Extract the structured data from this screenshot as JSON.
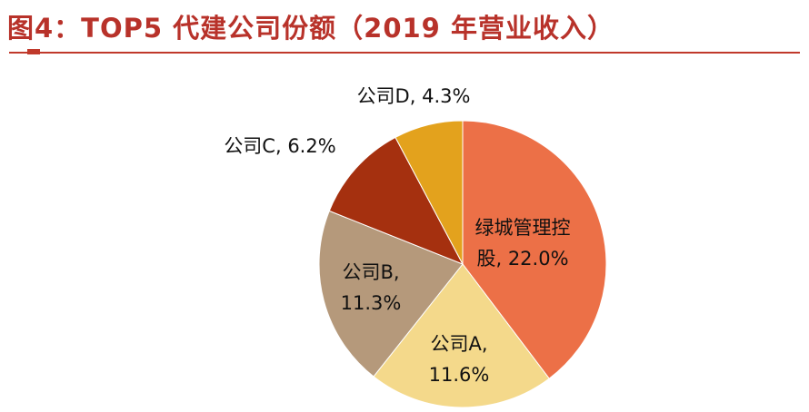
{
  "header": {
    "title": "图4：TOP5 代建公司份额（2019 年营业收入）"
  },
  "colors": {
    "title": "#b8322a",
    "rule": "#c0392b"
  },
  "chart_data": {
    "type": "pie",
    "title": "",
    "unit": "%",
    "slices": [
      {
        "label_lines": [
          "绿城管理控",
          "股, 22.0%"
        ],
        "name": "绿城管理控股",
        "value": 22.0,
        "color": "#ec7047"
      },
      {
        "label_lines": [
          "公司A,",
          "11.6%"
        ],
        "name": "公司A",
        "value": 11.6,
        "color": "#f4d98b"
      },
      {
        "label_lines": [
          "公司B,",
          "11.3%"
        ],
        "name": "公司B",
        "value": 11.3,
        "color": "#b5997b"
      },
      {
        "label_lines": [
          "公司C, 6.2%"
        ],
        "name": "公司C",
        "value": 6.2,
        "color": "#a5300f"
      },
      {
        "label_lines": [
          "公司D, 4.3%"
        ],
        "name": "公司D",
        "value": 4.3,
        "color": "#e3a21d"
      }
    ]
  }
}
